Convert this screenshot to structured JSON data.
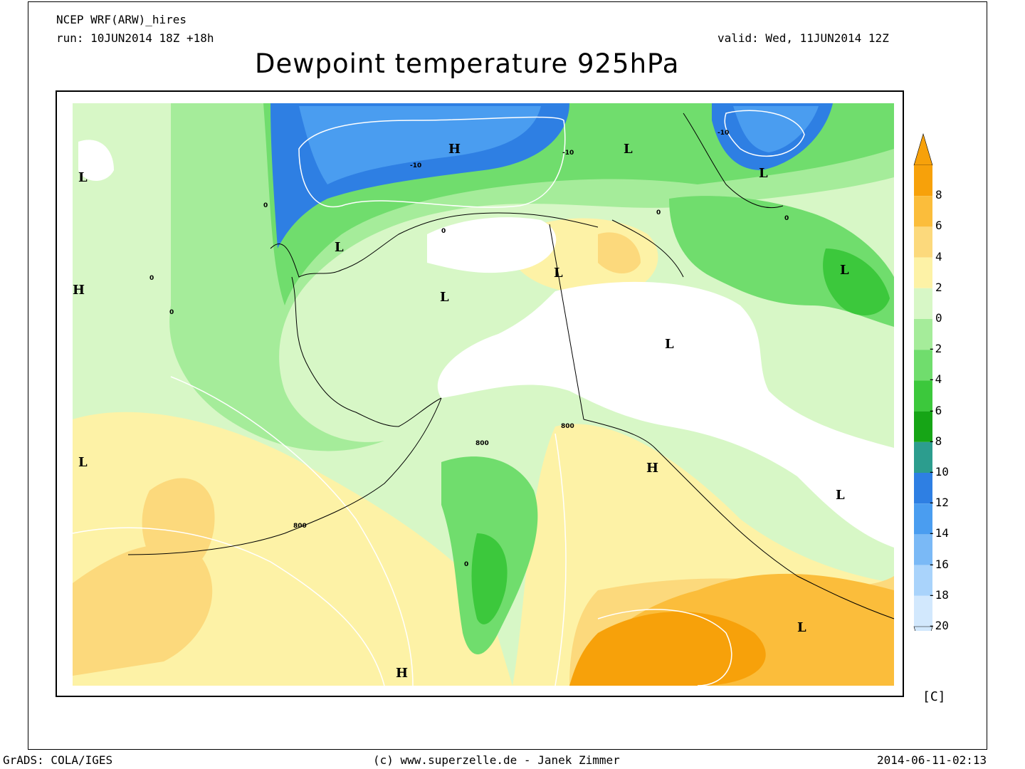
{
  "header": {
    "model": "NCEP WRF(ARW)_hires",
    "run": "run: 10JUN2014 18Z +18h",
    "valid": "valid: Wed, 11JUN2014 12Z",
    "title": "Dewpoint temperature 925hPa"
  },
  "colorbar": {
    "ticks": [
      "8",
      "6",
      "4",
      "2",
      "0",
      "-2",
      "-4",
      "-6",
      "-8",
      "-10",
      "-12",
      "-14",
      "-16",
      "-18",
      "-20"
    ],
    "colors": [
      "#f7a10a",
      "#fbbd3b",
      "#fcd97c",
      "#fdf2a6",
      "#d7f7c6",
      "#a5ec9a",
      "#70dd6d",
      "#3cc83c",
      "#16a516",
      "#2c9d8e",
      "#2e7fe3",
      "#4a9df0",
      "#7ab9f6",
      "#a9d3fb",
      "#d2e8fd"
    ],
    "unit": "[C]"
  },
  "map_labels": {
    "pressure_centers": [
      {
        "label": "L"
      },
      {
        "label": "H"
      },
      {
        "label": "L"
      },
      {
        "label": "L"
      },
      {
        "label": "L"
      },
      {
        "label": "L"
      },
      {
        "label": "L"
      },
      {
        "label": "L"
      },
      {
        "label": "L"
      },
      {
        "label": "H"
      },
      {
        "label": "L"
      },
      {
        "label": "L"
      },
      {
        "label": "H"
      },
      {
        "label": "H"
      },
      {
        "label": "L"
      }
    ],
    "contour_values": [
      "-10",
      "-10",
      "-10",
      "0",
      "0",
      "0",
      "0",
      "0",
      "0",
      "0",
      "800",
      "800",
      "800"
    ]
  },
  "footer": {
    "left": "GrADS: COLA/IGES",
    "center": "(c) www.superzelle.de - Janek Zimmer",
    "right": "2014-06-11-02:13"
  }
}
